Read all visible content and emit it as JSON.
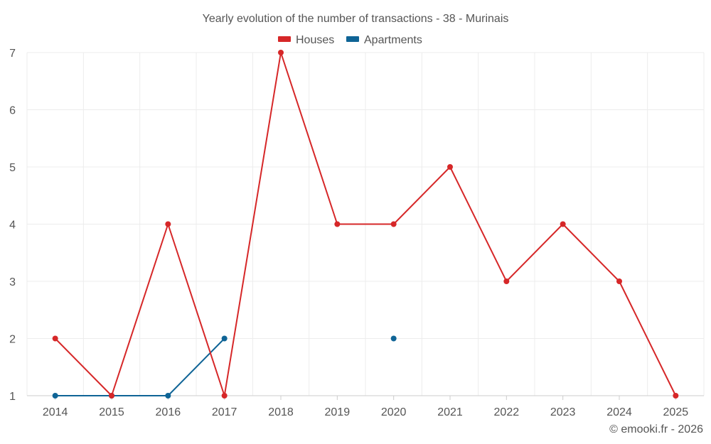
{
  "chart_data": {
    "type": "line",
    "title": "Yearly evolution of the number of transactions - 38 - Murinais",
    "xlabel": "",
    "ylabel": "",
    "categories": [
      "2014",
      "2015",
      "2016",
      "2017",
      "2018",
      "2019",
      "2020",
      "2021",
      "2022",
      "2023",
      "2024",
      "2025"
    ],
    "ylim": [
      1,
      7
    ],
    "yticks": [
      1,
      2,
      3,
      4,
      5,
      6,
      7
    ],
    "grid": true,
    "legend_position": "top-center",
    "series": [
      {
        "name": "Houses",
        "color": "#d62728",
        "values": [
          2,
          1,
          4,
          1,
          7,
          4,
          4,
          5,
          3,
          4,
          3,
          1
        ]
      },
      {
        "name": "Apartments",
        "color": "#0f6496",
        "values": [
          1,
          1,
          1,
          2,
          null,
          null,
          2,
          null,
          null,
          null,
          null,
          null
        ]
      }
    ]
  },
  "credit": "© emooki.fr - 2026"
}
